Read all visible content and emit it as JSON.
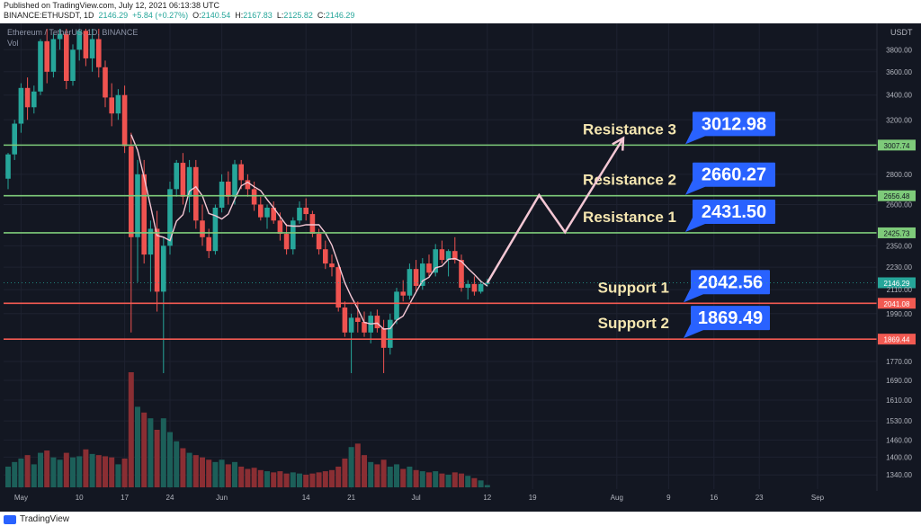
{
  "header": {
    "published": "Published on TradingView.com, July 12, 2021 06:13:38 UTC",
    "symbol": "BINANCE:ETHUSDT, 1D",
    "price": "2146.29",
    "change": "+5.84 (+0.27%)",
    "open_label": "O:",
    "open": "2140.54",
    "high_label": "H:",
    "high": "2167.83",
    "low_label": "L:",
    "low": "2125.82",
    "close_label": "C:",
    "close": "2146.29"
  },
  "legend": {
    "title": "Ethereum / TetherUS, 1D, BINANCE",
    "volume_label": "Vol"
  },
  "footer": {
    "brand": "TradingView"
  },
  "colors": {
    "background": "#131722",
    "up": "#26a69a",
    "down": "#ef5350",
    "resistance": "#7ecb7a",
    "support": "#f25a52",
    "label_box": "#2962ff",
    "annotation_text": "#f5e6b0",
    "ma_line": "#f4c7d4",
    "arrow": "#f4c7d4"
  },
  "chart_data": {
    "type": "candlestick",
    "title": "Ethereum / TetherUS, 1D, BINANCE",
    "price_scale": "log",
    "currency": "USDT",
    "ylim": [
      1300,
      4000
    ],
    "y_ticks": [
      1340,
      1400,
      1460,
      1530,
      1610,
      1690,
      1770,
      1990,
      2110,
      2230,
      2350,
      2600,
      2800,
      3200,
      3400,
      3600,
      3800
    ],
    "x_ticks": [
      "May",
      "10",
      "17",
      "24",
      "Jun",
      "14",
      "21",
      "Jul",
      "12",
      "19",
      "Aug",
      "9",
      "16",
      "23",
      "Sep"
    ],
    "levels": [
      {
        "name": "Resistance 3",
        "label": "3012.98",
        "axis_value": "3007.74",
        "value": 3007.74,
        "kind": "resistance"
      },
      {
        "name": "Resistance 2",
        "label": "2660.27",
        "axis_value": "2656.48",
        "value": 2656.48,
        "kind": "resistance"
      },
      {
        "name": "Resistance 1",
        "label": "2431.50",
        "axis_value": "2425.73",
        "value": 2425.73,
        "kind": "resistance"
      },
      {
        "name": "Support 1",
        "label": "2042.56",
        "axis_value": "2041.08",
        "value": 2041.08,
        "kind": "support"
      },
      {
        "name": "Support 2",
        "label": "1869.49",
        "axis_value": "1869.44",
        "value": 1869.44,
        "kind": "support"
      }
    ],
    "last_price": {
      "label": "2146.29",
      "value": 2146.29
    },
    "projection": [
      {
        "date": "2021-07-12",
        "price": 2146
      },
      {
        "date": "2021-07-20",
        "price": 2660
      },
      {
        "date": "2021-07-24",
        "price": 2430
      },
      {
        "date": "2021-08-02",
        "price": 3060
      }
    ],
    "candles": [
      {
        "o": 2770,
        "h": 2950,
        "l": 2700,
        "c": 2940,
        "v": 18
      },
      {
        "o": 2940,
        "h": 3200,
        "l": 2900,
        "c": 3170,
        "v": 22
      },
      {
        "o": 3170,
        "h": 3500,
        "l": 3100,
        "c": 3460,
        "v": 25
      },
      {
        "o": 3460,
        "h": 3550,
        "l": 3200,
        "c": 3300,
        "v": 28
      },
      {
        "o": 3300,
        "h": 3480,
        "l": 3250,
        "c": 3430,
        "v": 20
      },
      {
        "o": 3430,
        "h": 3900,
        "l": 3400,
        "c": 3880,
        "v": 30
      },
      {
        "o": 3880,
        "h": 4000,
        "l": 3500,
        "c": 3600,
        "v": 32
      },
      {
        "o": 3600,
        "h": 3950,
        "l": 3550,
        "c": 3900,
        "v": 26
      },
      {
        "o": 3900,
        "h": 4000,
        "l": 3800,
        "c": 3950,
        "v": 24
      },
      {
        "o": 3950,
        "h": 4000,
        "l": 3450,
        "c": 3520,
        "v": 30
      },
      {
        "o": 3520,
        "h": 3850,
        "l": 3480,
        "c": 3800,
        "v": 26
      },
      {
        "o": 3800,
        "h": 4000,
        "l": 3700,
        "c": 3980,
        "v": 27
      },
      {
        "o": 3980,
        "h": 4000,
        "l": 3650,
        "c": 3720,
        "v": 33
      },
      {
        "o": 3720,
        "h": 4000,
        "l": 3600,
        "c": 3900,
        "v": 29
      },
      {
        "o": 3900,
        "h": 4000,
        "l": 3550,
        "c": 3640,
        "v": 28
      },
      {
        "o": 3640,
        "h": 3700,
        "l": 3300,
        "c": 3380,
        "v": 27
      },
      {
        "o": 3380,
        "h": 3500,
        "l": 3150,
        "c": 3250,
        "v": 26
      },
      {
        "o": 3250,
        "h": 3450,
        "l": 3200,
        "c": 3400,
        "v": 20
      },
      {
        "o": 3400,
        "h": 3480,
        "l": 2950,
        "c": 3000,
        "v": 25
      },
      {
        "o": 3000,
        "h": 3100,
        "l": 1900,
        "c": 2400,
        "v": 100
      },
      {
        "o": 2400,
        "h": 2900,
        "l": 2150,
        "c": 2800,
        "v": 70
      },
      {
        "o": 2800,
        "h": 2900,
        "l": 2250,
        "c": 2300,
        "v": 65
      },
      {
        "o": 2300,
        "h": 2500,
        "l": 2100,
        "c": 2450,
        "v": 60
      },
      {
        "o": 2450,
        "h": 2560,
        "l": 2000,
        "c": 2100,
        "v": 50
      },
      {
        "o": 2100,
        "h": 2400,
        "l": 1720,
        "c": 2350,
        "v": 60
      },
      {
        "o": 2350,
        "h": 2750,
        "l": 2300,
        "c": 2700,
        "v": 48
      },
      {
        "o": 2700,
        "h": 2900,
        "l": 2650,
        "c": 2880,
        "v": 40
      },
      {
        "o": 2880,
        "h": 2950,
        "l": 2600,
        "c": 2650,
        "v": 34
      },
      {
        "o": 2650,
        "h": 2900,
        "l": 2550,
        "c": 2850,
        "v": 30
      },
      {
        "o": 2850,
        "h": 2900,
        "l": 2450,
        "c": 2500,
        "v": 28
      },
      {
        "o": 2500,
        "h": 2600,
        "l": 2350,
        "c": 2400,
        "v": 26
      },
      {
        "o": 2400,
        "h": 2450,
        "l": 2280,
        "c": 2320,
        "v": 24
      },
      {
        "o": 2320,
        "h": 2600,
        "l": 2300,
        "c": 2580,
        "v": 22
      },
      {
        "o": 2580,
        "h": 2800,
        "l": 2550,
        "c": 2750,
        "v": 24
      },
      {
        "o": 2750,
        "h": 2820,
        "l": 2600,
        "c": 2650,
        "v": 20
      },
      {
        "o": 2650,
        "h": 2900,
        "l": 2600,
        "c": 2870,
        "v": 22
      },
      {
        "o": 2870,
        "h": 2900,
        "l": 2700,
        "c": 2760,
        "v": 18
      },
      {
        "o": 2760,
        "h": 2800,
        "l": 2650,
        "c": 2700,
        "v": 16
      },
      {
        "o": 2700,
        "h": 2750,
        "l": 2560,
        "c": 2600,
        "v": 17
      },
      {
        "o": 2600,
        "h": 2650,
        "l": 2500,
        "c": 2520,
        "v": 15
      },
      {
        "o": 2520,
        "h": 2600,
        "l": 2450,
        "c": 2580,
        "v": 14
      },
      {
        "o": 2580,
        "h": 2620,
        "l": 2480,
        "c": 2500,
        "v": 13
      },
      {
        "o": 2500,
        "h": 2550,
        "l": 2380,
        "c": 2420,
        "v": 14
      },
      {
        "o": 2420,
        "h": 2480,
        "l": 2300,
        "c": 2330,
        "v": 12
      },
      {
        "o": 2330,
        "h": 2520,
        "l": 2300,
        "c": 2500,
        "v": 13
      },
      {
        "o": 2500,
        "h": 2620,
        "l": 2480,
        "c": 2580,
        "v": 12
      },
      {
        "o": 2580,
        "h": 2640,
        "l": 2500,
        "c": 2540,
        "v": 11
      },
      {
        "o": 2540,
        "h": 2560,
        "l": 2400,
        "c": 2420,
        "v": 12
      },
      {
        "o": 2420,
        "h": 2450,
        "l": 2300,
        "c": 2330,
        "v": 13
      },
      {
        "o": 2330,
        "h": 2380,
        "l": 2220,
        "c": 2250,
        "v": 14
      },
      {
        "o": 2250,
        "h": 2300,
        "l": 2180,
        "c": 2230,
        "v": 15
      },
      {
        "o": 2230,
        "h": 2250,
        "l": 2000,
        "c": 2020,
        "v": 18
      },
      {
        "o": 2020,
        "h": 2050,
        "l": 1880,
        "c": 1900,
        "v": 25
      },
      {
        "o": 1900,
        "h": 1990,
        "l": 1720,
        "c": 1970,
        "v": 35
      },
      {
        "o": 1970,
        "h": 2050,
        "l": 1900,
        "c": 1950,
        "v": 38
      },
      {
        "o": 1950,
        "h": 2000,
        "l": 1880,
        "c": 1900,
        "v": 28
      },
      {
        "o": 1900,
        "h": 2000,
        "l": 1850,
        "c": 1980,
        "v": 22
      },
      {
        "o": 1980,
        "h": 2010,
        "l": 1900,
        "c": 1920,
        "v": 20
      },
      {
        "o": 1920,
        "h": 1960,
        "l": 1720,
        "c": 1830,
        "v": 24
      },
      {
        "o": 1830,
        "h": 1990,
        "l": 1800,
        "c": 1960,
        "v": 18
      },
      {
        "o": 1960,
        "h": 2120,
        "l": 1940,
        "c": 2100,
        "v": 20
      },
      {
        "o": 2100,
        "h": 2160,
        "l": 2050,
        "c": 2080,
        "v": 16
      },
      {
        "o": 2080,
        "h": 2250,
        "l": 2060,
        "c": 2220,
        "v": 18
      },
      {
        "o": 2220,
        "h": 2270,
        "l": 2100,
        "c": 2130,
        "v": 15
      },
      {
        "o": 2130,
        "h": 2280,
        "l": 2110,
        "c": 2250,
        "v": 14
      },
      {
        "o": 2250,
        "h": 2300,
        "l": 2180,
        "c": 2200,
        "v": 13
      },
      {
        "o": 2200,
        "h": 2360,
        "l": 2180,
        "c": 2330,
        "v": 14
      },
      {
        "o": 2330,
        "h": 2380,
        "l": 2250,
        "c": 2270,
        "v": 12
      },
      {
        "o": 2270,
        "h": 2330,
        "l": 2180,
        "c": 2320,
        "v": 11
      },
      {
        "o": 2320,
        "h": 2400,
        "l": 2250,
        "c": 2270,
        "v": 13
      },
      {
        "o": 2270,
        "h": 2300,
        "l": 2100,
        "c": 2120,
        "v": 12
      },
      {
        "o": 2120,
        "h": 2160,
        "l": 2060,
        "c": 2140,
        "v": 10
      },
      {
        "o": 2140,
        "h": 2180,
        "l": 2080,
        "c": 2100,
        "v": 8
      },
      {
        "o": 2100,
        "h": 2160,
        "l": 2090,
        "c": 2140,
        "v": 6
      },
      {
        "o": 2140,
        "h": 2168,
        "l": 2126,
        "c": 2146,
        "v": 2
      }
    ]
  }
}
